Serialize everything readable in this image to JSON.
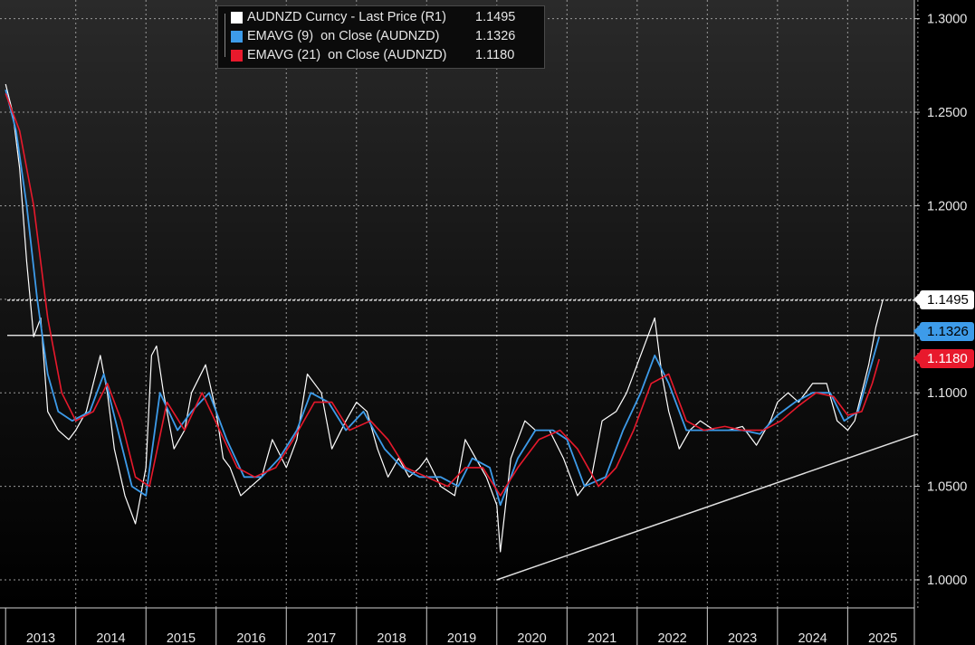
{
  "chart_data": {
    "type": "line",
    "legend": [
      {
        "label": "AUDNZD Curncy - Last Price (R1)",
        "value": "1.1495",
        "color": "#ffffff"
      },
      {
        "label": "EMAVG (9)  on Close (AUDNZD)",
        "value": "1.1326",
        "color": "#3d9be9"
      },
      {
        "label": "EMAVG (21)  on Close (AUDNZD)",
        "value": "1.1180",
        "color": "#e8192c"
      }
    ],
    "x_ticks": [
      "2013",
      "2014",
      "2015",
      "2016",
      "2017",
      "2018",
      "2019",
      "2020",
      "2021",
      "2022",
      "2023",
      "2024",
      "2025"
    ],
    "y_ticks": [
      "1.3000",
      "1.2500",
      "1.2000",
      "1.1500",
      "1.1000",
      "1.0500",
      "1.0000"
    ],
    "ylim": [
      0.985,
      1.31
    ],
    "xlim": [
      2012.92,
      2025.95
    ],
    "grid": true,
    "price_tags": [
      {
        "label": "1.1495",
        "value": 1.1495,
        "bg": "#ffffff",
        "fg": "#000000"
      },
      {
        "label": "1.1326",
        "value": 1.1326,
        "bg": "#3d9be9",
        "fg": "#000000"
      },
      {
        "label": "1.1180",
        "value": 1.118,
        "bg": "#e8192c",
        "fg": "#ffffff"
      }
    ],
    "hlines": [
      1.1495,
      1.1307
    ],
    "trendline": {
      "x": [
        2020.0,
        2026.0
      ],
      "y": [
        1.0,
        1.078
      ]
    },
    "series": [
      {
        "name": "AUDNZD Curncy - Last Price",
        "color": "#ffffff",
        "x": [
          2013.0,
          2013.1,
          2013.2,
          2013.3,
          2013.4,
          2013.5,
          2013.6,
          2013.75,
          2013.9,
          2014.0,
          2014.15,
          2014.35,
          2014.45,
          2014.55,
          2014.7,
          2014.85,
          2015.0,
          2015.08,
          2015.15,
          2015.25,
          2015.4,
          2015.55,
          2015.65,
          2015.85,
          2016.0,
          2016.1,
          2016.2,
          2016.35,
          2016.5,
          2016.65,
          2016.8,
          2017.0,
          2017.15,
          2017.3,
          2017.5,
          2017.65,
          2017.85,
          2018.0,
          2018.15,
          2018.3,
          2018.45,
          2018.6,
          2018.75,
          2018.9,
          2019.0,
          2019.2,
          2019.4,
          2019.55,
          2019.7,
          2019.85,
          2020.0,
          2020.05,
          2020.2,
          2020.4,
          2020.55,
          2020.75,
          2020.95,
          2021.15,
          2021.35,
          2021.5,
          2021.7,
          2021.85,
          2022.0,
          2022.15,
          2022.25,
          2022.35,
          2022.45,
          2022.6,
          2022.75,
          2022.9,
          2023.1,
          2023.3,
          2023.5,
          2023.7,
          2023.9,
          2024.0,
          2024.15,
          2024.3,
          2024.5,
          2024.7,
          2024.85,
          2025.0,
          2025.1,
          2025.2,
          2025.3,
          2025.4,
          2025.5
        ],
        "y": [
          1.265,
          1.25,
          1.22,
          1.17,
          1.13,
          1.14,
          1.09,
          1.08,
          1.075,
          1.08,
          1.09,
          1.12,
          1.1,
          1.07,
          1.045,
          1.03,
          1.06,
          1.12,
          1.125,
          1.1,
          1.07,
          1.08,
          1.1,
          1.115,
          1.09,
          1.065,
          1.06,
          1.045,
          1.05,
          1.055,
          1.075,
          1.06,
          1.075,
          1.11,
          1.1,
          1.07,
          1.085,
          1.095,
          1.09,
          1.07,
          1.055,
          1.065,
          1.055,
          1.06,
          1.065,
          1.05,
          1.045,
          1.075,
          1.065,
          1.055,
          1.04,
          1.015,
          1.065,
          1.085,
          1.08,
          1.08,
          1.065,
          1.045,
          1.055,
          1.085,
          1.09,
          1.1,
          1.115,
          1.13,
          1.14,
          1.11,
          1.09,
          1.07,
          1.08,
          1.085,
          1.08,
          1.08,
          1.082,
          1.072,
          1.085,
          1.095,
          1.1,
          1.095,
          1.105,
          1.105,
          1.085,
          1.08,
          1.085,
          1.1,
          1.115,
          1.135,
          1.1495
        ]
      },
      {
        "name": "EMAVG (9)",
        "color": "#3d9be9",
        "x": [
          2013.0,
          2013.15,
          2013.3,
          2013.45,
          2013.6,
          2013.75,
          2013.95,
          2014.2,
          2014.4,
          2014.6,
          2014.8,
          2015.0,
          2015.2,
          2015.45,
          2015.65,
          2015.9,
          2016.15,
          2016.4,
          2016.65,
          2016.9,
          2017.15,
          2017.35,
          2017.6,
          2017.85,
          2018.1,
          2018.4,
          2018.65,
          2018.9,
          2019.2,
          2019.45,
          2019.65,
          2019.9,
          2020.05,
          2020.3,
          2020.55,
          2020.8,
          2021.0,
          2021.25,
          2021.55,
          2021.8,
          2022.05,
          2022.25,
          2022.45,
          2022.7,
          2022.95,
          2023.2,
          2023.5,
          2023.75,
          2024.0,
          2024.25,
          2024.5,
          2024.75,
          2024.95,
          2025.15,
          2025.3,
          2025.45
        ],
        "y": [
          1.262,
          1.24,
          1.2,
          1.15,
          1.11,
          1.09,
          1.085,
          1.09,
          1.11,
          1.08,
          1.05,
          1.045,
          1.1,
          1.08,
          1.09,
          1.1,
          1.075,
          1.055,
          1.055,
          1.065,
          1.08,
          1.1,
          1.095,
          1.08,
          1.09,
          1.07,
          1.06,
          1.055,
          1.055,
          1.05,
          1.065,
          1.06,
          1.04,
          1.065,
          1.08,
          1.08,
          1.075,
          1.05,
          1.055,
          1.08,
          1.1,
          1.12,
          1.105,
          1.08,
          1.08,
          1.08,
          1.08,
          1.078,
          1.088,
          1.095,
          1.1,
          1.1,
          1.085,
          1.09,
          1.11,
          1.13
        ]
      },
      {
        "name": "EMAVG (21)",
        "color": "#e8192c",
        "x": [
          2013.0,
          2013.2,
          2013.4,
          2013.6,
          2013.8,
          2014.0,
          2014.25,
          2014.45,
          2014.65,
          2014.85,
          2015.05,
          2015.3,
          2015.55,
          2015.8,
          2016.05,
          2016.3,
          2016.55,
          2016.85,
          2017.1,
          2017.4,
          2017.65,
          2017.9,
          2018.2,
          2018.45,
          2018.7,
          2019.0,
          2019.3,
          2019.55,
          2019.8,
          2020.05,
          2020.3,
          2020.6,
          2020.9,
          2021.15,
          2021.45,
          2021.7,
          2021.95,
          2022.2,
          2022.45,
          2022.7,
          2022.95,
          2023.25,
          2023.5,
          2023.8,
          2024.05,
          2024.3,
          2024.55,
          2024.8,
          2025.0,
          2025.2,
          2025.35,
          2025.45
        ],
        "y": [
          1.26,
          1.24,
          1.2,
          1.14,
          1.1,
          1.085,
          1.09,
          1.105,
          1.085,
          1.055,
          1.05,
          1.095,
          1.08,
          1.1,
          1.08,
          1.06,
          1.055,
          1.06,
          1.075,
          1.095,
          1.095,
          1.08,
          1.085,
          1.075,
          1.06,
          1.055,
          1.05,
          1.06,
          1.06,
          1.045,
          1.06,
          1.075,
          1.08,
          1.07,
          1.05,
          1.06,
          1.08,
          1.105,
          1.11,
          1.085,
          1.08,
          1.082,
          1.08,
          1.08,
          1.085,
          1.093,
          1.1,
          1.098,
          1.088,
          1.09,
          1.105,
          1.118
        ]
      }
    ]
  }
}
